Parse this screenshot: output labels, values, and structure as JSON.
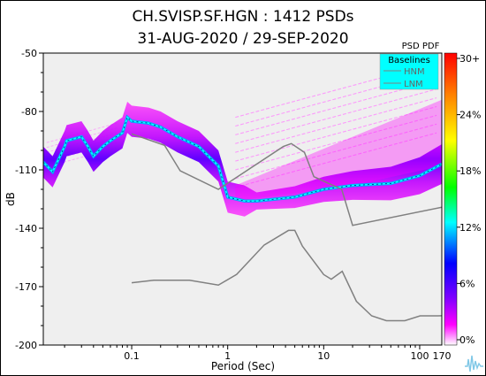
{
  "chart_data": {
    "type": "heatmap",
    "title_line1": "CH.SVISP.SF.HGN : 1412 PSDs",
    "title_line2": "31-AUG-2020 / 29-SEP-2020",
    "xlabel": "Period (Sec)",
    "ylabel": "dB",
    "x_scale": "log",
    "xlim": [
      0.012,
      170
    ],
    "ylim": [
      -200,
      -50
    ],
    "x_tick_values": [
      0.1,
      1,
      10,
      100,
      170
    ],
    "x_tick_labels": [
      "0.1",
      "1",
      "10",
      "100",
      "170"
    ],
    "y_tick_values": [
      -50,
      -80,
      -110,
      -140,
      -170,
      -200
    ],
    "y_tick_labels": [
      "-50",
      "-80",
      "-110",
      "-140",
      "-170",
      "-200"
    ],
    "colorbar": {
      "title": "PSD PDF",
      "tick_labels": [
        "30+",
        "24%",
        "18%",
        "12%",
        "6%",
        "0%"
      ],
      "stops": [
        "#ff0000",
        "#ff7f00",
        "#ffff00",
        "#00ff00",
        "#00ffff",
        "#0000ff",
        "#ff00ff",
        "#ffffff"
      ]
    },
    "legend": {
      "title": "Baselines",
      "entries": [
        "HNM",
        "LNM"
      ],
      "placement": "top-right",
      "background": "#00ffff"
    },
    "series": [
      {
        "name": "HNM",
        "x": [
          0.1,
          0.22,
          0.32,
          0.8,
          3.8,
          4.6,
          6.3,
          7.9,
          15.4,
          20,
          354
        ],
        "y": [
          -91.5,
          -97.4,
          -110.5,
          -120,
          -98,
          -96.5,
          -101,
          -113.5,
          -120,
          -138.5,
          -126
        ]
      },
      {
        "name": "LNM",
        "x": [
          0.1,
          0.17,
          0.4,
          0.8,
          1.24,
          2.4,
          4.3,
          5,
          6,
          10,
          12,
          15.6,
          21.9,
          31.6,
          45,
          70,
          101,
          154,
          328
        ],
        "y": [
          -168,
          -166.7,
          -166.7,
          -169.2,
          -163.7,
          -148.6,
          -141.1,
          -141.1,
          -149.2,
          -163.8,
          -166.2,
          -162.1,
          -177.5,
          -185,
          -187.5,
          -187.5,
          -185,
          -185,
          -184.4
        ]
      },
      {
        "name": "PSD mode",
        "x": [
          0.012,
          0.015,
          0.02,
          0.021,
          0.03,
          0.035,
          0.04,
          0.05,
          0.06,
          0.08,
          0.09,
          0.1,
          0.15,
          0.2,
          0.3,
          0.5,
          0.8,
          1.0,
          1.5,
          2,
          5,
          10,
          20,
          50,
          100,
          170
        ],
        "y": [
          -106,
          -111,
          -98,
          -95,
          -93,
          -98,
          -103,
          -98,
          -95,
          -91,
          -83,
          -85,
          -86,
          -88,
          -93,
          -98,
          -108,
          -124,
          -126,
          -126,
          -124,
          -120,
          -118,
          -117,
          -113,
          -107
        ]
      }
    ]
  }
}
